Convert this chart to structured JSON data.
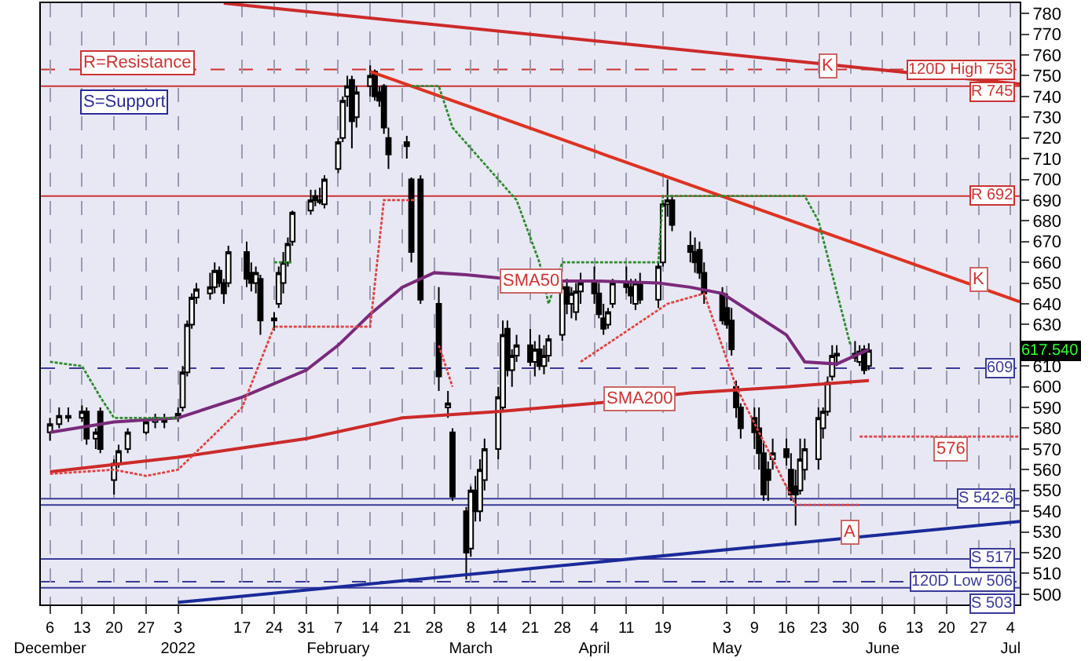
{
  "chart_data": {
    "type": "candlestick",
    "x": [
      "2021-12-06",
      "2021-12-08",
      "2021-12-10",
      "2021-12-13",
      "2021-12-14",
      "2021-12-16",
      "2021-12-17",
      "2021-12-20",
      "2021-12-21",
      "2021-12-23",
      "2021-12-27",
      "2021-12-29",
      "2021-12-31",
      "2022-01-03",
      "2022-01-04",
      "2022-01-05",
      "2022-01-06",
      "2022-01-07",
      "2022-01-10",
      "2022-01-11",
      "2022-01-12",
      "2022-01-13",
      "2022-01-14",
      "2022-01-18",
      "2022-01-19",
      "2022-01-20",
      "2022-01-21",
      "2022-01-24",
      "2022-01-25",
      "2022-01-26",
      "2022-01-27",
      "2022-01-28",
      "2022-02-01",
      "2022-02-02",
      "2022-02-03",
      "2022-02-04",
      "2022-02-07",
      "2022-02-08",
      "2022-02-09",
      "2022-02-10",
      "2022-02-11",
      "2022-02-14",
      "2022-02-15",
      "2022-02-16",
      "2022-02-17",
      "2022-02-18",
      "2022-02-22",
      "2022-02-23",
      "2022-02-25",
      "2022-03-01",
      "2022-03-03",
      "2022-03-04",
      "2022-03-07",
      "2022-03-08",
      "2022-03-09",
      "2022-03-10",
      "2022-03-11",
      "2022-03-14",
      "2022-03-15",
      "2022-03-16",
      "2022-03-17",
      "2022-03-18",
      "2022-03-21",
      "2022-03-22",
      "2022-03-23",
      "2022-03-24",
      "2022-03-25",
      "2022-03-28",
      "2022-03-29",
      "2022-03-30",
      "2022-03-31",
      "2022-04-01",
      "2022-04-04",
      "2022-04-05",
      "2022-04-06",
      "2022-04-07",
      "2022-04-08",
      "2022-04-11",
      "2022-04-12",
      "2022-04-13",
      "2022-04-14",
      "2022-04-18",
      "2022-04-19",
      "2022-04-20",
      "2022-04-21",
      "2022-04-25",
      "2022-04-26",
      "2022-04-27",
      "2022-04-28",
      "2022-05-02",
      "2022-05-03",
      "2022-05-04",
      "2022-05-05",
      "2022-05-06",
      "2022-05-09",
      "2022-05-10",
      "2022-05-11",
      "2022-05-12",
      "2022-05-13",
      "2022-05-16",
      "2022-05-17",
      "2022-05-18",
      "2022-05-19",
      "2022-05-20",
      "2022-05-23",
      "2022-05-24",
      "2022-05-25",
      "2022-05-26",
      "2022-05-27",
      "2022-05-31",
      "2022-06-01",
      "2022-06-02",
      "2022-06-03"
    ],
    "ohlc": [
      [
        578,
        585,
        574,
        582
      ],
      [
        582,
        590,
        580,
        586
      ],
      [
        586,
        590,
        583,
        585
      ],
      [
        585,
        591,
        583,
        588
      ],
      [
        588,
        590,
        572,
        575
      ],
      [
        575,
        580,
        570,
        578
      ],
      [
        588,
        590,
        568,
        570
      ],
      [
        555,
        565,
        548,
        563
      ],
      [
        563,
        572,
        561,
        569
      ],
      [
        570,
        580,
        568,
        578
      ],
      [
        578,
        585,
        577,
        583
      ],
      [
        583,
        587,
        580,
        585
      ],
      [
        583,
        587,
        580,
        584
      ],
      [
        585,
        590,
        583,
        587
      ],
      [
        590,
        610,
        588,
        607
      ],
      [
        607,
        632,
        605,
        630
      ],
      [
        630,
        645,
        628,
        643
      ],
      [
        643,
        650,
        640,
        647
      ],
      [
        645,
        655,
        642,
        648
      ],
      [
        648,
        660,
        645,
        656
      ],
      [
        656,
        658,
        648,
        650
      ],
      [
        650,
        652,
        640,
        645
      ],
      [
        650,
        668,
        648,
        665
      ],
      [
        665,
        670,
        648,
        652
      ],
      [
        655,
        660,
        646,
        650
      ],
      [
        650,
        658,
        645,
        655
      ],
      [
        652,
        654,
        625,
        632
      ],
      [
        632,
        636,
        627,
        633
      ],
      [
        640,
        658,
        638,
        655
      ],
      [
        650,
        665,
        645,
        660
      ],
      [
        660,
        672,
        658,
        669
      ],
      [
        670,
        685,
        668,
        684
      ],
      [
        685,
        695,
        683,
        690
      ],
      [
        692,
        695,
        687,
        690
      ],
      [
        690,
        696,
        688,
        689
      ],
      [
        688,
        702,
        686,
        700
      ],
      [
        705,
        720,
        703,
        718
      ],
      [
        720,
        740,
        718,
        738
      ],
      [
        740,
        750,
        735,
        745
      ],
      [
        748,
        750,
        715,
        728
      ],
      [
        730,
        745,
        725,
        742
      ],
      [
        745,
        755,
        740,
        750
      ],
      [
        752,
        753,
        738,
        740
      ],
      [
        742,
        745,
        735,
        738
      ],
      [
        745,
        746,
        722,
        725
      ],
      [
        720,
        725,
        705,
        712
      ],
      [
        718,
        721,
        710,
        716
      ],
      [
        700,
        701,
        660,
        665
      ],
      [
        700,
        702,
        640,
        642
      ],
      [
        640,
        648,
        598,
        605
      ],
      [
        590,
        598,
        585,
        592
      ],
      [
        578,
        580,
        545,
        547
      ],
      [
        540,
        542,
        507,
        520
      ],
      [
        522,
        552,
        518,
        550
      ],
      [
        550,
        557,
        535,
        540
      ],
      [
        540,
        565,
        535,
        560
      ],
      [
        555,
        575,
        550,
        570
      ],
      [
        570,
        600,
        565,
        595
      ],
      [
        590,
        632,
        588,
        625
      ],
      [
        628,
        632,
        605,
        608
      ],
      [
        608,
        618,
        600,
        615
      ],
      [
        615,
        625,
        612,
        620
      ],
      [
        620,
        628,
        610,
        612
      ],
      [
        612,
        622,
        605,
        618
      ],
      [
        618,
        625,
        608,
        610
      ],
      [
        610,
        620,
        606,
        615
      ],
      [
        615,
        625,
        612,
        623
      ],
      [
        625,
        650,
        622,
        648
      ],
      [
        648,
        652,
        635,
        640
      ],
      [
        640,
        648,
        633,
        645
      ],
      [
        636,
        650,
        632,
        646
      ],
      [
        646,
        655,
        640,
        650
      ],
      [
        650,
        658,
        640,
        645
      ],
      [
        645,
        650,
        633,
        635
      ],
      [
        633,
        640,
        625,
        628
      ],
      [
        630,
        638,
        628,
        636
      ],
      [
        640,
        652,
        638,
        650
      ],
      [
        650,
        658,
        645,
        648
      ],
      [
        648,
        652,
        640,
        644
      ],
      [
        640,
        652,
        637,
        650
      ],
      [
        650,
        655,
        640,
        642
      ],
      [
        642,
        660,
        638,
        658
      ],
      [
        660,
        690,
        658,
        688
      ],
      [
        688,
        700,
        682,
        690
      ],
      [
        690,
        692,
        675,
        678
      ],
      [
        668,
        675,
        660,
        665
      ],
      [
        665,
        672,
        655,
        660
      ],
      [
        666,
        670,
        652,
        655
      ],
      [
        655,
        660,
        640,
        645
      ],
      [
        645,
        648,
        630,
        632
      ],
      [
        638,
        645,
        628,
        630
      ],
      [
        632,
        638,
        615,
        618
      ],
      [
        600,
        603,
        585,
        590
      ],
      [
        590,
        592,
        575,
        580
      ],
      [
        585,
        590,
        570,
        578
      ],
      [
        580,
        590,
        560,
        568
      ],
      [
        568,
        574,
        545,
        548
      ],
      [
        560,
        564,
        545,
        555
      ],
      [
        565,
        575,
        560,
        568
      ],
      [
        570,
        575,
        562,
        566
      ],
      [
        560,
        568,
        545,
        548
      ],
      [
        552,
        560,
        533,
        548
      ],
      [
        550,
        575,
        548,
        565
      ],
      [
        560,
        575,
        555,
        570
      ],
      [
        565,
        590,
        560,
        585
      ],
      [
        580,
        590,
        575,
        588
      ],
      [
        588,
        605,
        586,
        602
      ],
      [
        605,
        620,
        603,
        615
      ],
      [
        615,
        620,
        610,
        616
      ],
      [
        616,
        622,
        612,
        614
      ],
      [
        612,
        620,
        610,
        617
      ],
      [
        618,
        620,
        606,
        608
      ],
      [
        610,
        621,
        608,
        617.54
      ]
    ],
    "series": [
      {
        "type": "line",
        "color": "#7a2a7a",
        "x": [
          "2021-12-06",
          "2021-12-20",
          "2022-01-03",
          "2022-01-17",
          "2022-01-31",
          "2022-02-07",
          "2022-02-14",
          "2022-02-21",
          "2022-02-28",
          "2022-03-07",
          "2022-03-21",
          "2022-04-04",
          "2022-04-18",
          "2022-04-25",
          "2022-05-02",
          "2022-05-09",
          "2022-05-16",
          "2022-05-20",
          "2022-05-27",
          "2022-06-03"
        ],
        "values": [
          578,
          583,
          585,
          595,
          608,
          620,
          635,
          648,
          655,
          654,
          651,
          651,
          650,
          648,
          645,
          635,
          625,
          612,
          611,
          618
        ]
      },
      {
        "type": "line",
        "color": "#cc2a2a",
        "x": [
          "2021-12-06",
          "2022-01-03",
          "2022-01-31",
          "2022-02-21",
          "2022-03-14",
          "2022-04-04",
          "2022-04-25",
          "2022-05-16",
          "2022-06-03"
        ],
        "values": [
          559,
          566,
          575,
          585,
          588,
          592,
          597,
          600,
          603
        ]
      },
      {
        "type": "line",
        "color": "#cc2a2a",
        "x": [
          "2022-01-13",
          "2022-07-06"
        ],
        "values": [
          785,
          746
        ]
      },
      {
        "type": "line",
        "color": "#dd3322",
        "x": [
          "2022-02-14",
          "2022-07-06"
        ],
        "values": [
          752,
          641
        ]
      },
      {
        "type": "line",
        "color": "#1a2a99",
        "x": [
          "2022-01-03",
          "2022-07-06"
        ],
        "values": [
          496,
          535
        ]
      },
      {
        "type": "line",
        "color": "#2e8b2e",
        "line_style": "dotted",
        "x": [
          "2021-12-06",
          "2021-12-13",
          "2021-12-17",
          "2021-12-20",
          "2022-01-03",
          "2022-01-04",
          "2022-01-24",
          "2022-01-28",
          "2022-01-31",
          "2022-02-23",
          "2022-03-01",
          "2022-03-04",
          "2022-03-10",
          "2022-03-18",
          "2022-03-23",
          "2022-03-25",
          "2022-03-28",
          "2022-04-18",
          "2022-04-19",
          "2022-05-20",
          "2022-05-23",
          "2022-05-30"
        ],
        "values": [
          612,
          610,
          595,
          585,
          585,
          null,
          660,
          660,
          null,
          745,
          745,
          725,
          710,
          690,
          660,
          640,
          660,
          660,
          692,
          692,
          680,
          620
        ]
      },
      {
        "type": "line",
        "color": "#dd4444",
        "line_style": "dotted",
        "x": [
          "2021-12-06",
          "2021-12-20",
          "2021-12-27",
          "2022-01-03",
          "2022-01-10",
          "2022-01-17",
          "2022-01-24",
          "2022-02-14",
          "2022-02-17",
          "2022-02-24",
          "2022-02-25",
          "2022-03-01",
          "2022-03-04",
          "2022-03-08",
          "2022-04-01",
          "2022-04-20",
          "2022-04-28",
          "2022-05-05",
          "2022-05-18",
          "2022-06-01"
        ],
        "values": [
          558,
          560,
          557,
          560,
          575,
          590,
          629,
          629,
          690,
          690,
          null,
          620,
          600,
          null,
          612,
          640,
          645,
          600,
          543,
          543
        ]
      },
      {
        "type": "line",
        "color": "#dd4444",
        "line_style": "dotted",
        "x": [
          "2022-06-01",
          "2022-07-06"
        ],
        "values": [
          576,
          576
        ]
      }
    ],
    "ref_lines": [
      {
        "axis": "y",
        "value": 753,
        "label": "120D High 753",
        "color": "#cc3333",
        "line_style": "dashed"
      },
      {
        "axis": "y",
        "value": 745,
        "label": "R 745",
        "color": "#cc3333",
        "line_style": "solid"
      },
      {
        "axis": "y",
        "value": 692,
        "label": "R 692",
        "color": "#cc3333",
        "line_style": "solid"
      },
      {
        "axis": "y",
        "value": 609,
        "label": "609",
        "color": "#3a3a99",
        "line_style": "dashed"
      },
      {
        "axis": "y",
        "value": 546,
        "label": "S 542-6",
        "color": "#3a3a99",
        "line_style": "solid"
      },
      {
        "axis": "y",
        "value": 543,
        "color": "#3a3a99",
        "line_style": "solid"
      },
      {
        "axis": "y",
        "value": 517,
        "label": "S 517",
        "color": "#3a3a99",
        "line_style": "solid"
      },
      {
        "axis": "y",
        "value": 506,
        "label": "120D Low 506",
        "color": "#3a3a99",
        "line_style": "dashed"
      },
      {
        "axis": "y",
        "value": 503,
        "label": "S 503",
        "color": "#3a3a99",
        "line_style": "solid"
      }
    ],
    "annotations": [
      "R=Resistance",
      "S=Support",
      {
        "text": "SMA50",
        "x": "2022-03-21",
        "y": 651
      },
      {
        "text": "SMA200",
        "x": "2022-04-14",
        "y": 594
      },
      {
        "text": "K",
        "x": "2022-05-25",
        "y": 755
      },
      {
        "text": "K",
        "x": "2022-06-27",
        "y": 652
      },
      {
        "text": "A",
        "x": "2022-05-30",
        "y": 530
      },
      {
        "text": "576",
        "x": "2022-06-21",
        "y": 570
      },
      "617.540"
    ],
    "xlim": [
      "2021-12-04",
      "2022-07-06"
    ],
    "xticks": [
      {
        "value": "2021-12-06",
        "label": "6\nDecember"
      },
      {
        "value": "2021-12-13",
        "label": "13"
      },
      {
        "value": "2021-12-20",
        "label": "20"
      },
      {
        "value": "2021-12-27",
        "label": "27"
      },
      {
        "value": "2022-01-03",
        "label": "3\n2022"
      },
      {
        "value": "2022-01-17",
        "label": "17"
      },
      {
        "value": "2022-01-24",
        "label": "24"
      },
      {
        "value": "2022-01-31",
        "label": "31"
      },
      {
        "value": "2022-02-07",
        "label": "7\nFebruary"
      },
      {
        "value": "2022-02-14",
        "label": "14"
      },
      {
        "value": "2022-02-21",
        "label": "21"
      },
      {
        "value": "2022-02-28",
        "label": "28"
      },
      {
        "value": "2022-03-08",
        "label": "8\nMarch"
      },
      {
        "value": "2022-03-14",
        "label": "14"
      },
      {
        "value": "2022-03-21",
        "label": "21"
      },
      {
        "value": "2022-03-28",
        "label": "28"
      },
      {
        "value": "2022-04-04",
        "label": "4\nApril"
      },
      {
        "value": "2022-04-11",
        "label": "11"
      },
      {
        "value": "2022-04-19",
        "label": "19"
      },
      {
        "value": "2022-05-03",
        "label": "3\nMay"
      },
      {
        "value": "2022-05-09",
        "label": "9"
      },
      {
        "value": "2022-05-16",
        "label": "16"
      },
      {
        "value": "2022-05-23",
        "label": "23"
      },
      {
        "value": "2022-05-30",
        "label": "30"
      },
      {
        "value": "2022-06-06",
        "label": "6\nJune"
      },
      {
        "value": "2022-06-13",
        "label": "13"
      },
      {
        "value": "2022-06-20",
        "label": "20"
      },
      {
        "value": "2022-06-27",
        "label": "27"
      },
      {
        "value": "2022-07-04",
        "label": "4\nJul"
      }
    ],
    "ylim": [
      495,
      785
    ],
    "yticks": [
      500,
      510,
      520,
      530,
      540,
      550,
      560,
      570,
      580,
      590,
      600,
      610,
      {
        "value": 620,
        "label": null
      },
      630,
      640,
      650,
      660,
      670,
      680,
      690,
      700,
      710,
      720,
      730,
      740,
      750,
      760,
      770,
      780
    ],
    "grid": "x",
    "legend": false,
    "marker": "none"
  }
}
